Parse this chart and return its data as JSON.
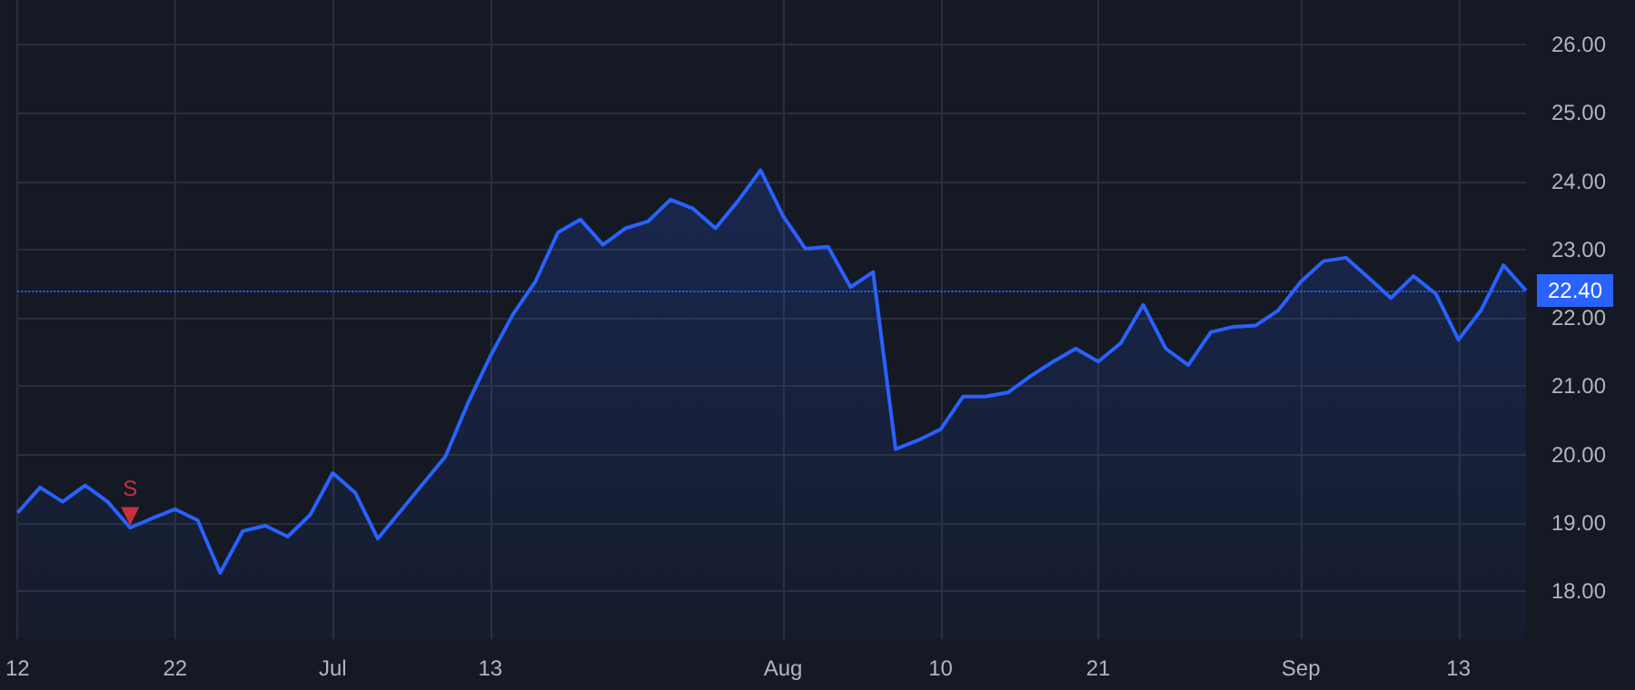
{
  "chart_data": {
    "type": "area",
    "categories": [
      "12",
      null,
      null,
      null,
      null,
      null,
      null,
      "22",
      null,
      null,
      null,
      null,
      null,
      null,
      "Jul",
      null,
      null,
      null,
      null,
      null,
      null,
      "13",
      null,
      null,
      null,
      null,
      null,
      null,
      null,
      null,
      null,
      null,
      null,
      null,
      "Aug",
      null,
      null,
      null,
      null,
      null,
      null,
      "10",
      null,
      null,
      null,
      null,
      null,
      null,
      "21",
      null,
      null,
      null,
      null,
      null,
      null,
      null,
      null,
      "Sep",
      null,
      null,
      null,
      null,
      null,
      null,
      "13",
      null,
      null,
      null
    ],
    "series": [
      {
        "color": "#2962ff",
        "values": [
          19.15,
          19.52,
          19.31,
          19.55,
          19.31,
          18.93,
          19.07,
          19.2,
          19.04,
          18.27,
          18.88,
          18.96,
          18.8,
          19.12,
          19.73,
          19.44,
          18.77,
          19.17,
          19.57,
          19.97,
          20.75,
          21.44,
          22.05,
          22.53,
          23.25,
          23.44,
          23.07,
          23.31,
          23.41,
          23.73,
          23.6,
          23.31,
          23.71,
          24.16,
          23.49,
          23.01,
          23.04,
          22.45,
          22.67,
          20.08,
          20.21,
          20.37,
          20.85,
          20.85,
          20.91,
          21.15,
          21.36,
          21.55,
          21.36,
          21.63,
          22.19,
          21.55,
          21.31,
          21.79,
          21.87,
          21.89,
          22.11,
          22.53,
          22.83,
          22.88,
          22.59,
          22.29,
          22.61,
          22.35,
          21.68,
          22.11,
          22.77,
          22.4
        ]
      },
      {
        "type": "scatter",
        "color": "#f23645",
        "marker": "triangle",
        "values": [
          null,
          null,
          null,
          null,
          null,
          19.1,
          null,
          null,
          null,
          null,
          null,
          null,
          null,
          null,
          null,
          null,
          null,
          null,
          null,
          null,
          null,
          null,
          null,
          null,
          null,
          null,
          null,
          null,
          null,
          null,
          null,
          null,
          null,
          null,
          null,
          null,
          null,
          null,
          null,
          null,
          null,
          null,
          null,
          null,
          null,
          null,
          null,
          null,
          null,
          null,
          null,
          null,
          null,
          null,
          null,
          null,
          null,
          null,
          null,
          null,
          null,
          null,
          null,
          null,
          null,
          null,
          null,
          null
        ],
        "value_labels": [
          null,
          null,
          null,
          null,
          null,
          "S",
          null,
          null,
          null,
          null,
          null,
          null,
          null,
          null,
          null,
          null,
          null,
          null,
          null,
          null,
          null,
          null,
          null,
          null,
          null,
          null,
          null,
          null,
          null,
          null,
          null,
          null,
          null,
          null,
          null,
          null,
          null,
          null,
          null,
          null,
          null,
          null,
          null,
          null,
          null,
          null,
          null,
          null,
          null,
          null,
          null,
          null,
          null,
          null,
          null,
          null,
          null,
          null,
          null,
          null,
          null,
          null,
          null,
          null,
          null,
          null,
          null,
          null
        ]
      }
    ],
    "ylim": [
      17.3,
      26.65
    ],
    "yticks": [
      {
        "value": 18,
        "label": "18.00"
      },
      {
        "value": 19,
        "label": "19.00"
      },
      {
        "value": 20,
        "label": "20.00"
      },
      {
        "value": 21,
        "label": "21.00"
      },
      {
        "value": 22,
        "label": "22.00"
      },
      {
        "value": 23,
        "label": "23.00"
      },
      {
        "value": 24,
        "label": "24.00"
      },
      {
        "value": 25,
        "label": "25.00"
      },
      {
        "value": 26,
        "label": "26.00"
      }
    ],
    "ref_lines": [
      {
        "axis": "y",
        "value": 22.4,
        "label": "22.40",
        "color": "#2962ff",
        "line_style": "dotted"
      }
    ],
    "grid": true,
    "marker": "none",
    "line_style": "solid"
  }
}
